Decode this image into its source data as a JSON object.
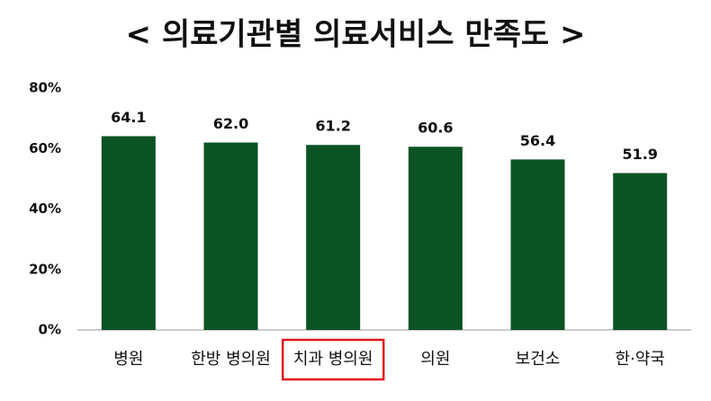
{
  "chart_data": {
    "type": "bar",
    "title": "< 의료기관별 의료서비스 만족도 >",
    "categories": [
      "병원",
      "한방 병의원",
      "치과 병의원",
      "의원",
      "보건소",
      "한·약국"
    ],
    "values": [
      64.1,
      62.0,
      61.2,
      60.6,
      56.4,
      51.9
    ],
    "value_labels": [
      "64.1",
      "62.0",
      "61.2",
      "60.6",
      "56.4",
      "51.9"
    ],
    "color": "#0b5323",
    "ylim": [
      0,
      80
    ],
    "yticks": [
      {
        "value": 0,
        "label": "0%"
      },
      {
        "value": 20,
        "label": "20%"
      },
      {
        "value": 40,
        "label": "40%"
      },
      {
        "value": 60,
        "label": "60%"
      },
      {
        "value": 80,
        "label": "80%"
      }
    ],
    "grid": false,
    "highlight_index": 2,
    "highlight_color": "#e0141e"
  }
}
